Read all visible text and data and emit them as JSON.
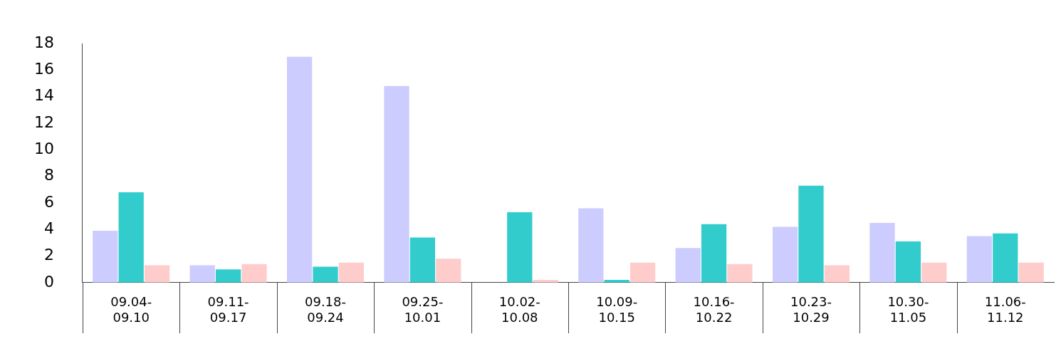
{
  "chart_data": {
    "type": "bar",
    "categories": [
      "09.04-09.10",
      "09.11-09.17",
      "09.18-09.24",
      "09.25-10.01",
      "10.02-10.08",
      "10.09-10.15",
      "10.16-10.22",
      "10.23-10.29",
      "10.30-11.05",
      "11.06-11.12"
    ],
    "series": [
      {
        "color": "#ccccff",
        "values": [
          3.9,
          1.3,
          17.0,
          14.8,
          null,
          5.6,
          2.6,
          4.2,
          4.5,
          3.5
        ]
      },
      {
        "color": "#33cccc",
        "values": [
          6.8,
          1.0,
          1.2,
          3.4,
          5.3,
          0.2,
          4.4,
          7.3,
          3.1,
          3.7
        ]
      },
      {
        "color": "#ffcccc",
        "values": [
          1.3,
          1.4,
          1.5,
          1.8,
          0.2,
          1.5,
          1.4,
          1.3,
          1.5,
          1.5
        ]
      }
    ],
    "ylim": [
      0,
      18
    ],
    "yticks": [
      0,
      2,
      4,
      6,
      8,
      10,
      12,
      14,
      16,
      18
    ],
    "grid": false,
    "legend": false
  }
}
